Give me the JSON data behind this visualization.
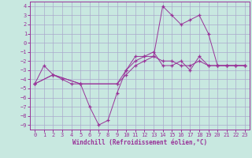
{
  "xlabel": "Windchill (Refroidissement éolien,°C)",
  "bg_color": "#c8e8e0",
  "grid_color": "#aaaacc",
  "line_color": "#993399",
  "xlim": [
    -0.5,
    23.5
  ],
  "ylim": [
    -9.5,
    4.5
  ],
  "xticks": [
    0,
    1,
    2,
    3,
    4,
    5,
    6,
    7,
    8,
    9,
    10,
    11,
    12,
    13,
    14,
    15,
    16,
    17,
    18,
    19,
    20,
    21,
    22,
    23
  ],
  "yticks": [
    4,
    3,
    2,
    1,
    0,
    -1,
    -2,
    -3,
    -4,
    -5,
    -6,
    -7,
    -8,
    -9
  ],
  "line1_x": [
    0,
    1,
    2,
    3,
    4,
    5,
    6,
    7,
    8,
    9,
    10,
    11,
    12,
    13,
    14,
    15,
    16,
    17,
    18,
    19,
    20,
    21,
    22,
    23
  ],
  "line1_y": [
    -4.5,
    -2.5,
    -3.5,
    -4.0,
    -4.5,
    -4.5,
    -7.0,
    -9.0,
    -8.5,
    -5.5,
    -3.0,
    -1.5,
    -1.5,
    -1.5,
    4.0,
    3.0,
    2.0,
    2.5,
    3.0,
    1.0,
    -2.5,
    -2.5,
    -2.5,
    -2.5
  ],
  "line2_x": [
    0,
    2,
    5,
    9,
    10,
    11,
    12,
    13,
    14,
    15,
    16,
    17,
    18,
    19,
    20,
    21,
    22,
    23
  ],
  "line2_y": [
    -4.5,
    -3.5,
    -4.5,
    -4.5,
    -3.5,
    -2.5,
    -2.0,
    -1.5,
    -2.0,
    -2.0,
    -2.5,
    -2.5,
    -2.0,
    -2.5,
    -2.5,
    -2.5,
    -2.5,
    -2.5
  ],
  "line3_x": [
    0,
    2,
    5,
    9,
    10,
    11,
    12,
    13,
    14,
    15,
    16,
    17,
    18,
    19,
    20,
    21,
    22,
    23
  ],
  "line3_y": [
    -4.5,
    -3.5,
    -4.5,
    -4.5,
    -3.0,
    -2.0,
    -1.5,
    -1.0,
    -2.5,
    -2.5,
    -2.0,
    -3.0,
    -1.5,
    -2.5,
    -2.5,
    -2.5,
    -2.5,
    -2.5
  ],
  "marker_size": 3.5,
  "lw": 0.7
}
